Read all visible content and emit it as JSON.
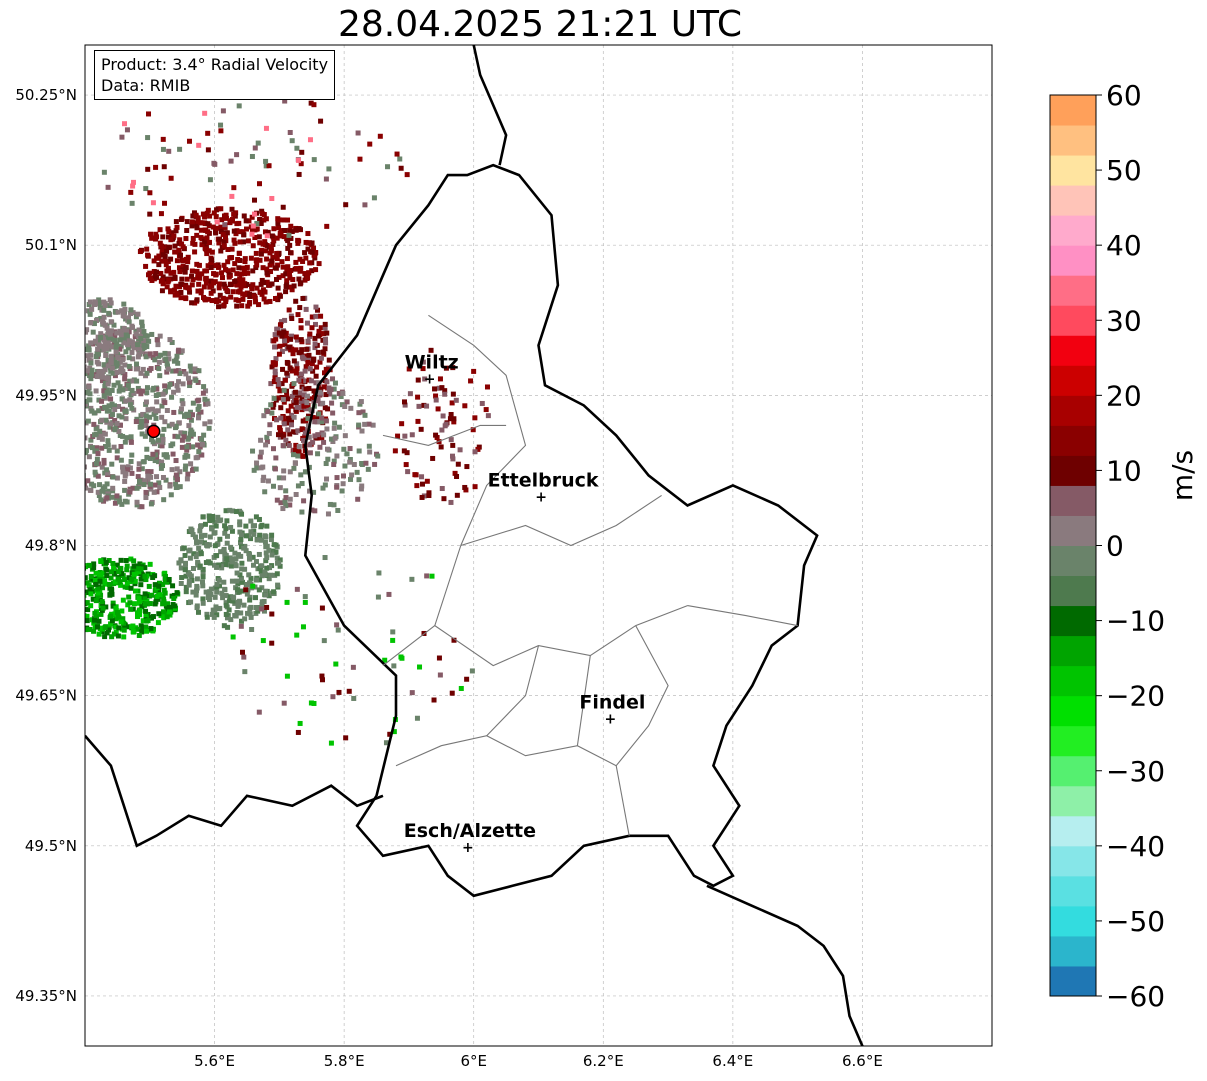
{
  "title": "28.04.2025 21:21 UTC",
  "info": {
    "product": "Product: 3.4° Radial Velocity",
    "source": "Data: RMIB"
  },
  "map": {
    "lon_range": [
      5.4,
      6.8
    ],
    "lat_range": [
      49.3,
      50.3
    ],
    "lat_ticks": [
      {
        "value": 50.25,
        "label": "50.25°N"
      },
      {
        "value": 50.1,
        "label": "50.1°N"
      },
      {
        "value": 49.95,
        "label": "49.95°N"
      },
      {
        "value": 49.8,
        "label": "49.8°N"
      },
      {
        "value": 49.65,
        "label": "49.65°N"
      },
      {
        "value": 49.5,
        "label": "49.5°N"
      },
      {
        "value": 49.35,
        "label": "49.35°N"
      }
    ],
    "lon_ticks": [
      {
        "value": 5.6,
        "label": "5.6°E"
      },
      {
        "value": 5.8,
        "label": "5.8°E"
      },
      {
        "value": 6.0,
        "label": "6°E"
      },
      {
        "value": 6.2,
        "label": "6.2°E"
      },
      {
        "value": 6.4,
        "label": "6.4°E"
      },
      {
        "value": 6.6,
        "label": "6.6°E"
      }
    ],
    "radar_site": {
      "lon": 5.506,
      "lat": 49.914,
      "color": "#ff0000"
    },
    "cities": [
      {
        "name": "Wiltz",
        "lon": 5.932,
        "lat": 49.967
      },
      {
        "name": "Ettelbruck",
        "lon": 6.104,
        "lat": 49.849
      },
      {
        "name": "Findel",
        "lon": 6.211,
        "lat": 49.627
      },
      {
        "name": "Esch/Alzette",
        "lon": 5.991,
        "lat": 49.499
      }
    ]
  },
  "colorbar": {
    "label": "m/s",
    "min": -60,
    "max": 60,
    "ticks": [
      {
        "value": 60,
        "label": "60"
      },
      {
        "value": 50,
        "label": "50"
      },
      {
        "value": 40,
        "label": "40"
      },
      {
        "value": 30,
        "label": "30"
      },
      {
        "value": 20,
        "label": "20"
      },
      {
        "value": 10,
        "label": "10"
      },
      {
        "value": 0,
        "label": "0"
      },
      {
        "value": -10,
        "label": "−10"
      },
      {
        "value": -20,
        "label": "−20"
      },
      {
        "value": -30,
        "label": "−30"
      },
      {
        "value": -40,
        "label": "−40"
      },
      {
        "value": -50,
        "label": "−50"
      },
      {
        "value": -60,
        "label": "−60"
      }
    ],
    "colors": [
      {
        "from": -60,
        "to": -56,
        "color": "#1f77b4"
      },
      {
        "from": -56,
        "to": -52,
        "color": "#2bb5cc"
      },
      {
        "from": -52,
        "to": -48,
        "color": "#33dcdf"
      },
      {
        "from": -48,
        "to": -44,
        "color": "#5ae0e2"
      },
      {
        "from": -44,
        "to": -40,
        "color": "#86e6e8"
      },
      {
        "from": -40,
        "to": -36,
        "color": "#b6eeef"
      },
      {
        "from": -36,
        "to": -32,
        "color": "#8ef0a8"
      },
      {
        "from": -32,
        "to": -28,
        "color": "#55f070"
      },
      {
        "from": -28,
        "to": -24,
        "color": "#22ee22"
      },
      {
        "from": -24,
        "to": -20,
        "color": "#00e000"
      },
      {
        "from": -20,
        "to": -16,
        "color": "#00c400"
      },
      {
        "from": -16,
        "to": -12,
        "color": "#00a400"
      },
      {
        "from": -12,
        "to": -8,
        "color": "#006a00"
      },
      {
        "from": -8,
        "to": -4,
        "color": "#4e7a4e"
      },
      {
        "from": -4,
        "to": 0,
        "color": "#6a836a"
      },
      {
        "from": 0,
        "to": 4,
        "color": "#8a7a7e"
      },
      {
        "from": 4,
        "to": 8,
        "color": "#855a66"
      },
      {
        "from": 8,
        "to": 12,
        "color": "#6e0000"
      },
      {
        "from": 12,
        "to": 16,
        "color": "#8a0000"
      },
      {
        "from": 16,
        "to": 20,
        "color": "#a80000"
      },
      {
        "from": 20,
        "to": 24,
        "color": "#cc0000"
      },
      {
        "from": 24,
        "to": 28,
        "color": "#f20010"
      },
      {
        "from": 28,
        "to": 32,
        "color": "#ff4a5e"
      },
      {
        "from": 32,
        "to": 36,
        "color": "#ff6e86"
      },
      {
        "from": 36,
        "to": 40,
        "color": "#ff90c4"
      },
      {
        "from": 40,
        "to": 44,
        "color": "#ffaacc"
      },
      {
        "from": 44,
        "to": 48,
        "color": "#ffc4b8"
      },
      {
        "from": 48,
        "to": 52,
        "color": "#ffe4a0"
      },
      {
        "from": 52,
        "to": 56,
        "color": "#ffc080"
      },
      {
        "from": 56,
        "to": 60,
        "color": "#ffa05a"
      }
    ]
  },
  "echo_clusters": [
    {
      "lon": 5.47,
      "lat": 49.93,
      "rx": 0.12,
      "ry": 0.09,
      "count": 700,
      "values": [
        -2,
        2,
        4,
        -4
      ]
    },
    {
      "lon": 5.62,
      "lat": 50.09,
      "rx": 0.14,
      "ry": 0.05,
      "count": 550,
      "values": [
        10,
        12,
        14
      ]
    },
    {
      "lon": 5.73,
      "lat": 49.97,
      "rx": 0.05,
      "ry": 0.08,
      "count": 280,
      "values": [
        10,
        13,
        4
      ]
    },
    {
      "lon": 5.45,
      "lat": 49.75,
      "rx": 0.09,
      "ry": 0.04,
      "count": 400,
      "values": [
        -14,
        -12,
        -18
      ]
    },
    {
      "lon": 5.62,
      "lat": 49.78,
      "rx": 0.08,
      "ry": 0.06,
      "count": 350,
      "values": [
        -4,
        -8,
        -2
      ]
    },
    {
      "lon": 5.43,
      "lat": 50.01,
      "rx": 0.06,
      "ry": 0.04,
      "count": 200,
      "values": [
        -2,
        2,
        0
      ]
    },
    {
      "lon": 5.75,
      "lat": 49.9,
      "rx": 0.1,
      "ry": 0.07,
      "count": 180,
      "values": [
        4,
        2,
        -2
      ]
    },
    {
      "lon": 5.95,
      "lat": 49.92,
      "rx": 0.08,
      "ry": 0.08,
      "count": 90,
      "values": [
        4,
        10,
        14
      ]
    },
    {
      "lon": 5.65,
      "lat": 50.18,
      "rx": 0.25,
      "ry": 0.07,
      "count": 90,
      "values": [
        10,
        14,
        32,
        4,
        -2
      ]
    },
    {
      "lon": 5.8,
      "lat": 49.7,
      "rx": 0.2,
      "ry": 0.1,
      "count": 70,
      "values": [
        -4,
        -20,
        4,
        10
      ]
    }
  ]
}
